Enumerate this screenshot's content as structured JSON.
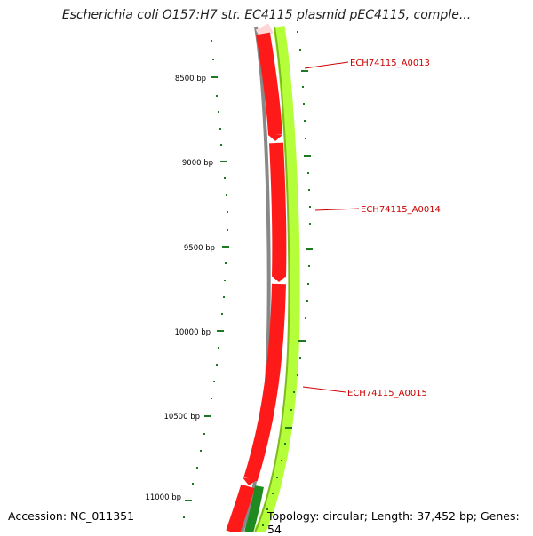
{
  "title": "Escherichia coli O157:H7 str. EC4115 plasmid pEC4115, comple...",
  "accession": "Accession: NC_011351",
  "summary": "Topology: circular; Length: 37,452 bp; Genes: 54",
  "ruler": {
    "labels": [
      "8500 bp",
      "9000 bp",
      "9500 bp",
      "10000 bp",
      "10500 bp",
      "11000 bp"
    ],
    "major_bp": [
      8500,
      9000,
      9500,
      10000,
      10500,
      11000
    ]
  },
  "genes": [
    {
      "name": "ECH74115_A0013"
    },
    {
      "name": "ECH74115_A0014"
    },
    {
      "name": "ECH74115_A0015"
    }
  ],
  "colors": {
    "cds": "#ff1a1a",
    "cds_light": "#ffd6d6",
    "gene_track": "#b5ff3a",
    "gene_track_edge": "#7dbb1e",
    "gene_dark": "#1f8a1f",
    "backbone": "#888888",
    "ticks": "#1e7a1e",
    "label": "#cc0000"
  }
}
